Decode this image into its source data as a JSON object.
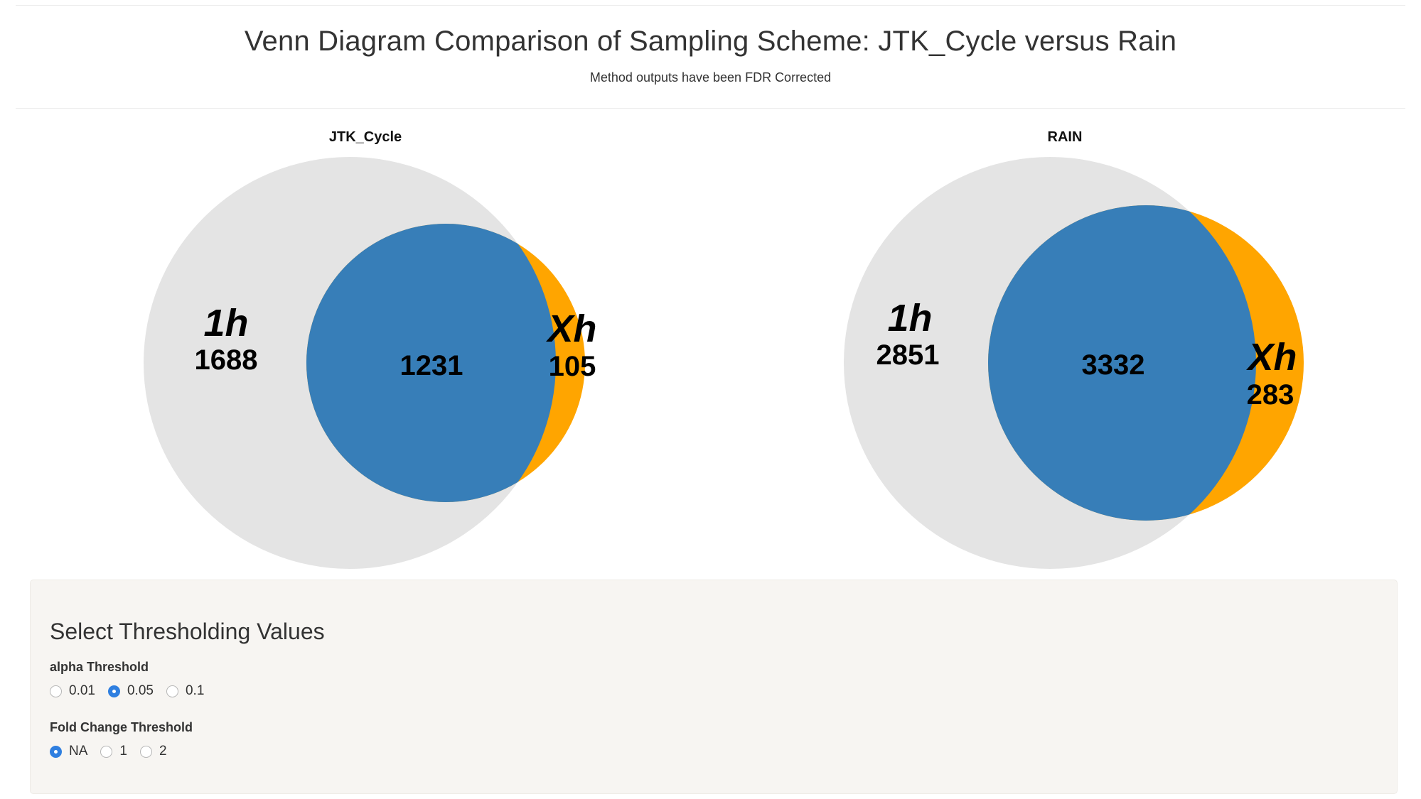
{
  "header": {
    "title": "Venn Diagram Comparison of Sampling Scheme: JTK_Cycle versus Rain",
    "subtitle": "Method outputs have been FDR Corrected"
  },
  "venns": [
    {
      "title": "JTK_Cycle",
      "set_a_label": "1h",
      "set_b_label": "Xh",
      "only_a": "1688",
      "intersection": "1231",
      "only_b": "105"
    },
    {
      "title": "RAIN",
      "set_a_label": "1h",
      "set_b_label": "Xh",
      "only_a": "2851",
      "intersection": "3332",
      "only_b": "283"
    }
  ],
  "colors": {
    "set_a": "#e4e4e4",
    "set_b": "#ffa500",
    "intersection": "#377eb8"
  },
  "controls": {
    "title": "Select Thresholding Values",
    "alpha": {
      "label": "alpha Threshold",
      "options": [
        "0.01",
        "0.05",
        "0.1"
      ],
      "selected": "0.05"
    },
    "fold_change": {
      "label": "Fold Change Threshold",
      "options": [
        "NA",
        "1",
        "2"
      ],
      "selected": "NA"
    }
  }
}
